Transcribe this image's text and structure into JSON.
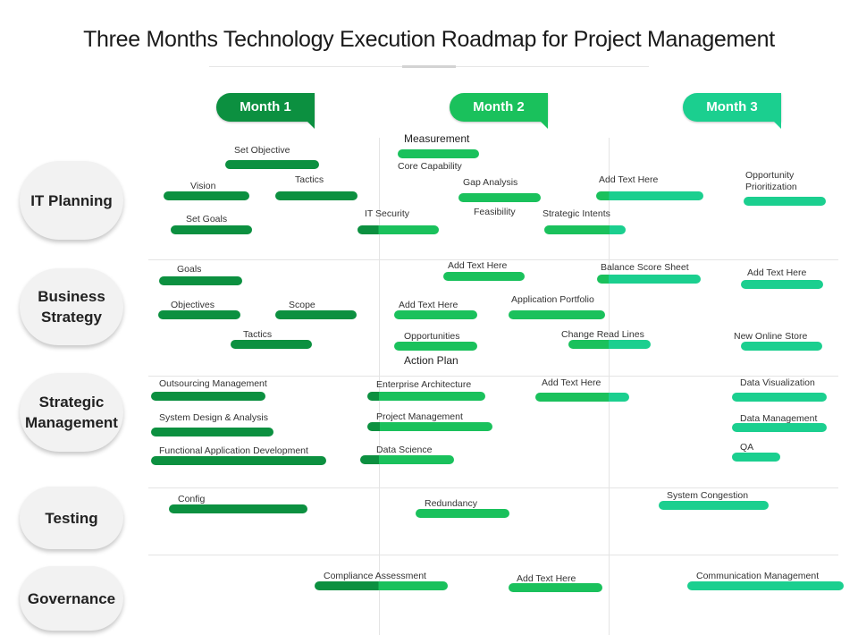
{
  "title": "Three Months Technology Execution Roadmap for Project Management",
  "colors": {
    "dark": "#0c9040",
    "mid": "#1ac15c",
    "teal": "#1bcf8f"
  },
  "months": [
    {
      "label": "Month 1",
      "color": "#0c9040"
    },
    {
      "label": "Month 2",
      "color": "#1ac15c"
    },
    {
      "label": "Month 3",
      "color": "#1bcf8f"
    }
  ],
  "categories": [
    {
      "id": "it-planning",
      "label": "IT Planning"
    },
    {
      "id": "business-strategy",
      "label": "Business\nStrategy"
    },
    {
      "id": "strategic-management",
      "label": "Strategic\nManagement"
    },
    {
      "id": "testing",
      "label": "Testing"
    },
    {
      "id": "governance",
      "label": "Governance"
    }
  ],
  "tasks": [
    {
      "label": "Set Objective",
      "category": "it-planning"
    },
    {
      "label": "Vision",
      "category": "it-planning"
    },
    {
      "label": "Tactics",
      "category": "it-planning"
    },
    {
      "label": "Set Goals",
      "category": "it-planning"
    },
    {
      "label": "IT Security",
      "category": "it-planning"
    },
    {
      "label": "Measurement",
      "category": "it-planning"
    },
    {
      "label": "Core Capability",
      "category": "it-planning"
    },
    {
      "label": "Gap Analysis",
      "category": "it-planning"
    },
    {
      "label": "Feasibility",
      "category": "it-planning"
    },
    {
      "label": "Strategic Intents",
      "category": "it-planning"
    },
    {
      "label": "Add Text Here",
      "category": "it-planning"
    },
    {
      "label": "Opportunity\nPrioritization",
      "category": "it-planning"
    },
    {
      "label": "Goals",
      "category": "business-strategy"
    },
    {
      "label": "Objectives",
      "category": "business-strategy"
    },
    {
      "label": "Scope",
      "category": "business-strategy"
    },
    {
      "label": "Tactics",
      "category": "business-strategy"
    },
    {
      "label": "Add Text Here",
      "category": "business-strategy"
    },
    {
      "label": "Add Text Here",
      "category": "business-strategy"
    },
    {
      "label": "Opportunities",
      "category": "business-strategy"
    },
    {
      "label": "Action Plan",
      "category": "business-strategy"
    },
    {
      "label": "Application Portfolio",
      "category": "business-strategy"
    },
    {
      "label": "Balance Score Sheet",
      "category": "business-strategy"
    },
    {
      "label": "Change Read Lines",
      "category": "business-strategy"
    },
    {
      "label": "Add Text Here",
      "category": "business-strategy"
    },
    {
      "label": "New Online Store",
      "category": "business-strategy"
    },
    {
      "label": "Outsourcing Management",
      "category": "strategic-management"
    },
    {
      "label": "System Design & Analysis",
      "category": "strategic-management"
    },
    {
      "label": "Functional Application Development",
      "category": "strategic-management"
    },
    {
      "label": "Enterprise Architecture",
      "category": "strategic-management"
    },
    {
      "label": "Project Management",
      "category": "strategic-management"
    },
    {
      "label": "Data Science",
      "category": "strategic-management"
    },
    {
      "label": "Add Text Here",
      "category": "strategic-management"
    },
    {
      "label": "Data Visualization",
      "category": "strategic-management"
    },
    {
      "label": "Data Management",
      "category": "strategic-management"
    },
    {
      "label": "QA",
      "category": "strategic-management"
    },
    {
      "label": "Config",
      "category": "testing"
    },
    {
      "label": "Redundancy",
      "category": "testing"
    },
    {
      "label": "System Congestion",
      "category": "testing"
    },
    {
      "label": "Compliance Assessment",
      "category": "governance"
    },
    {
      "label": "Add Text Here",
      "category": "governance"
    },
    {
      "label": "Communication Management",
      "category": "governance"
    }
  ]
}
